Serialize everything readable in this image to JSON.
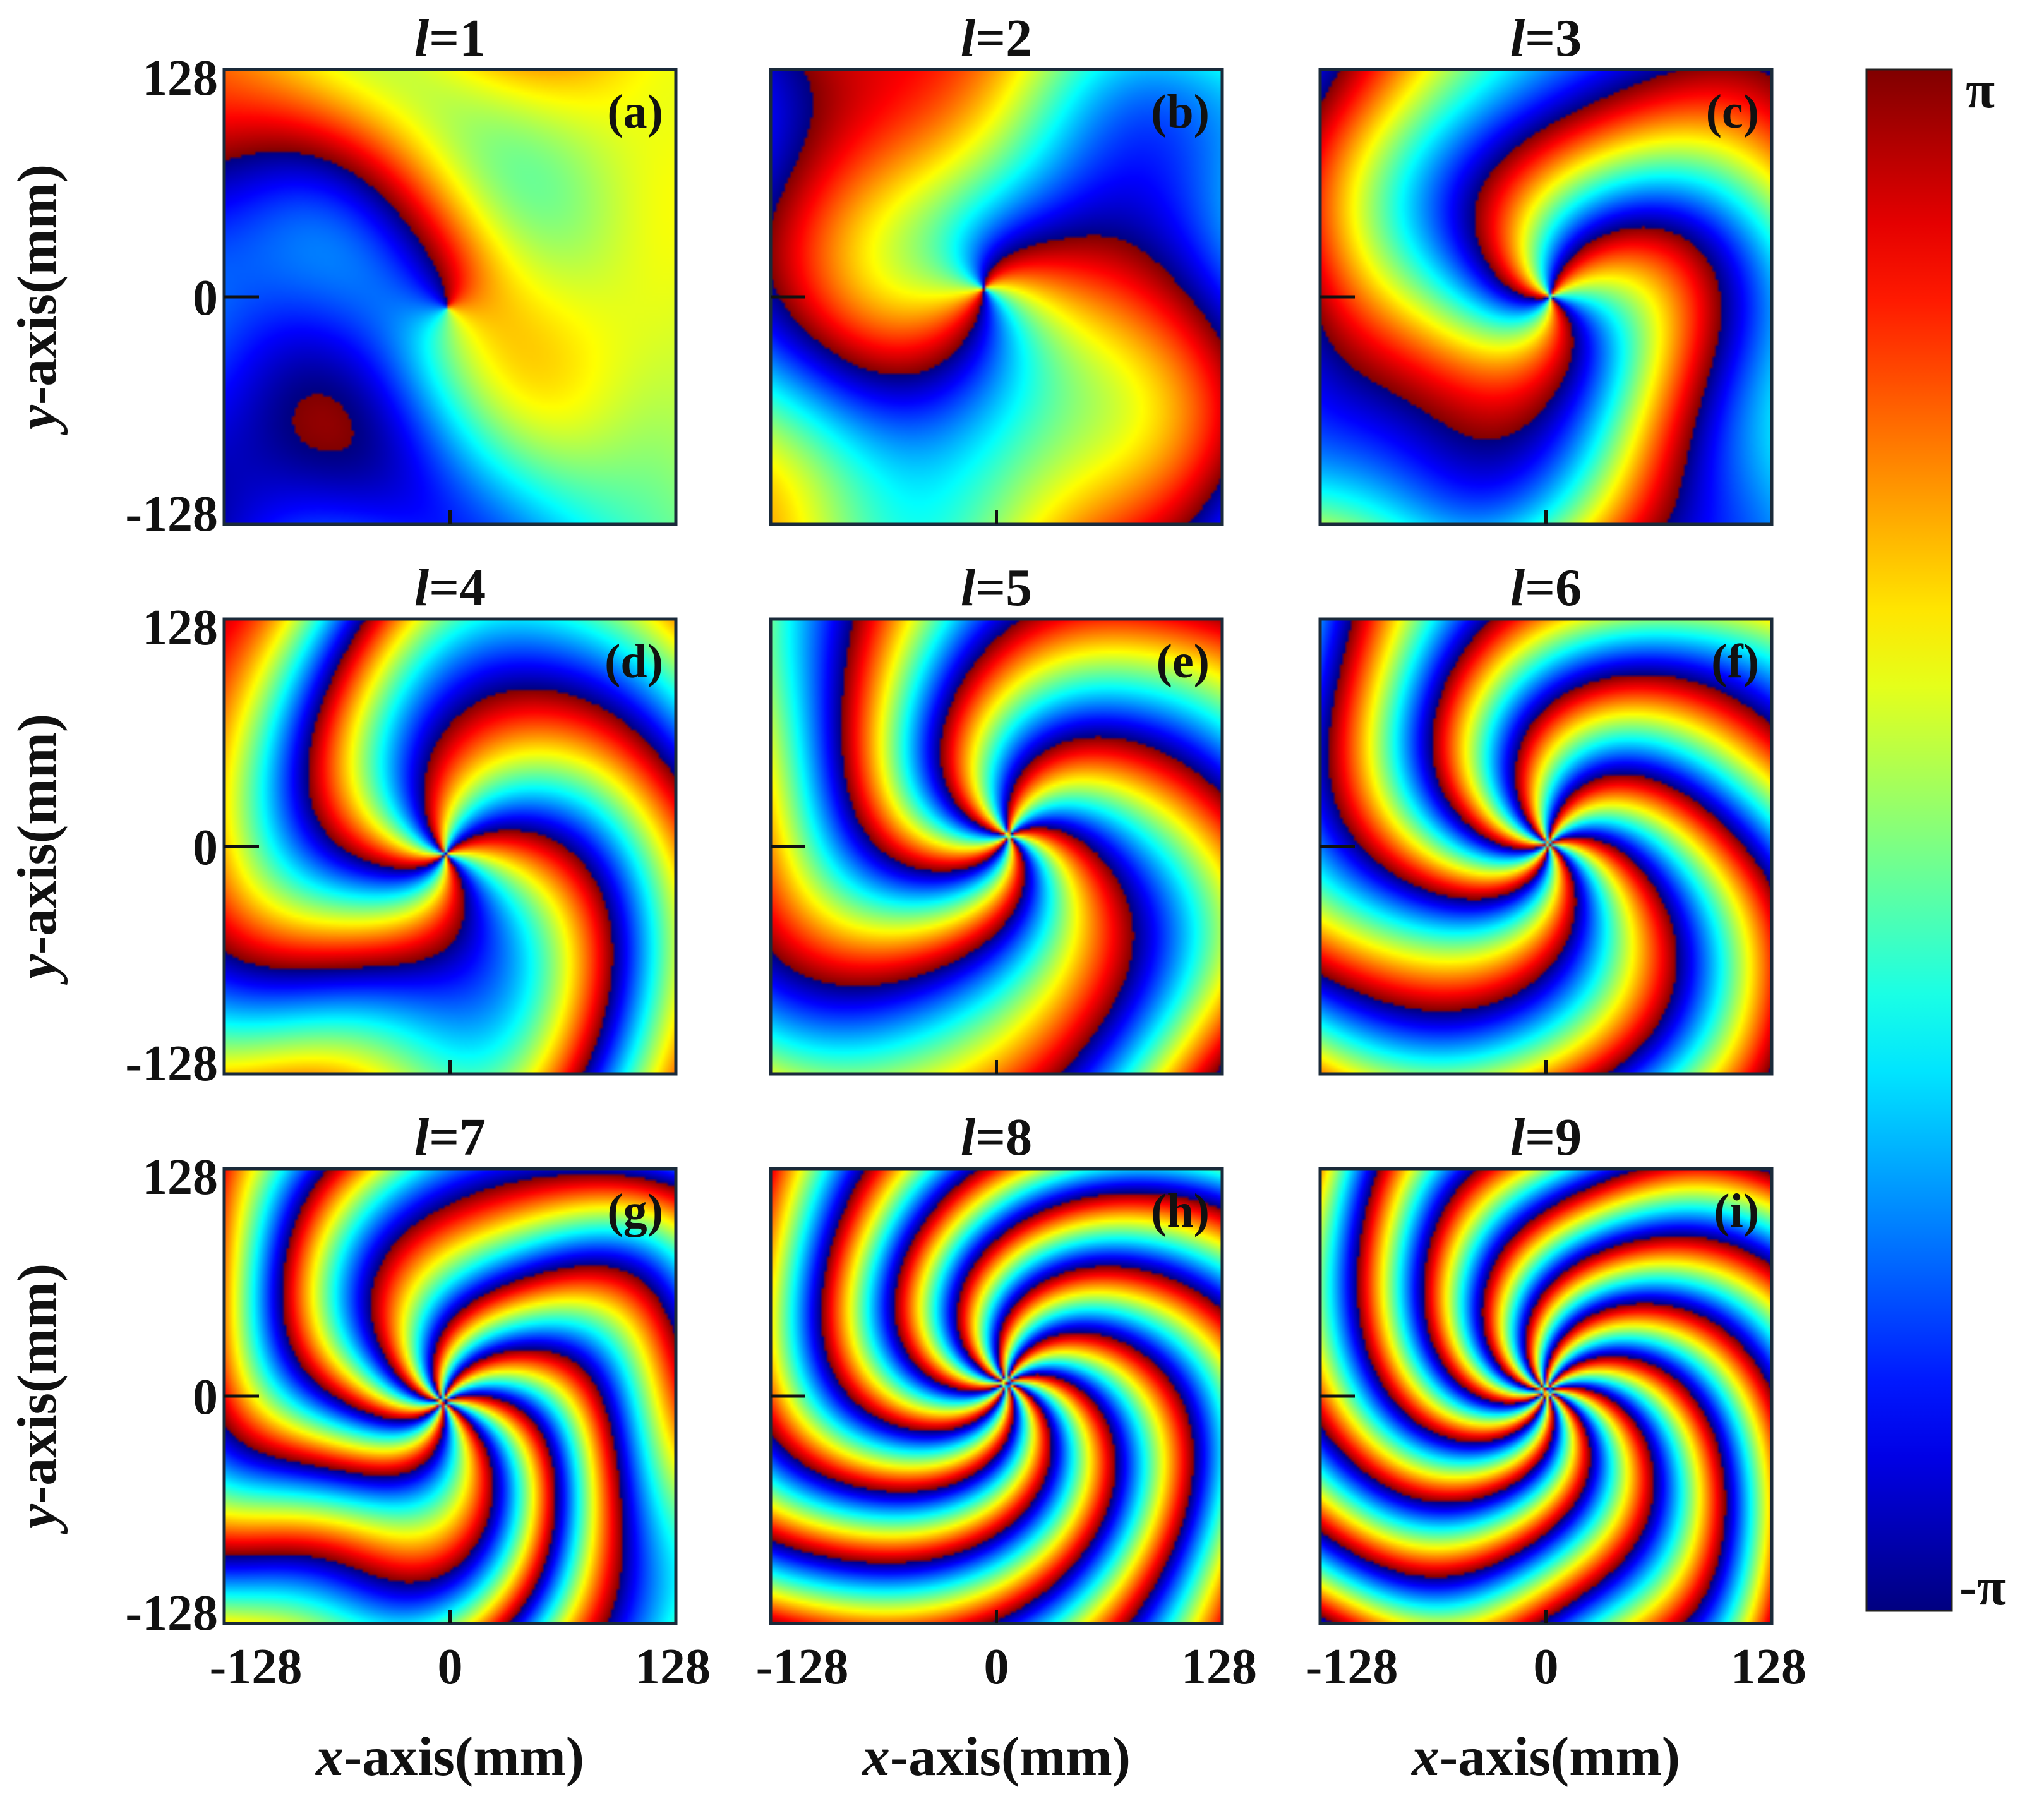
{
  "chart_data": {
    "type": "heatmap",
    "colormap": "jet",
    "panels": [
      {
        "title": "l=1",
        "l": 1,
        "label": "(a)"
      },
      {
        "title": "l=2",
        "l": 2,
        "label": "(b)"
      },
      {
        "title": "l=3",
        "l": 3,
        "label": "(c)"
      },
      {
        "title": "l=4",
        "l": 4,
        "label": "(d)"
      },
      {
        "title": "l=5",
        "l": 5,
        "label": "(e)"
      },
      {
        "title": "l=6",
        "l": 6,
        "label": "(f)"
      },
      {
        "title": "l=7",
        "l": 7,
        "label": "(g)"
      },
      {
        "title": "l=8",
        "l": 8,
        "label": "(h)"
      },
      {
        "title": "l=9",
        "l": 9,
        "label": "(i)"
      }
    ],
    "xlabel": "x-axis(mm)",
    "ylabel": "y-axis(mm)",
    "xlim": [
      -128,
      128
    ],
    "ylim": [
      -128,
      128
    ],
    "xticks": [
      "-128",
      "0",
      "128"
    ],
    "yticks": [
      "128",
      "0",
      "-128"
    ],
    "colorbar": {
      "min_label": "-π",
      "max_label": "π",
      "range": [
        "-π",
        "π"
      ]
    }
  }
}
